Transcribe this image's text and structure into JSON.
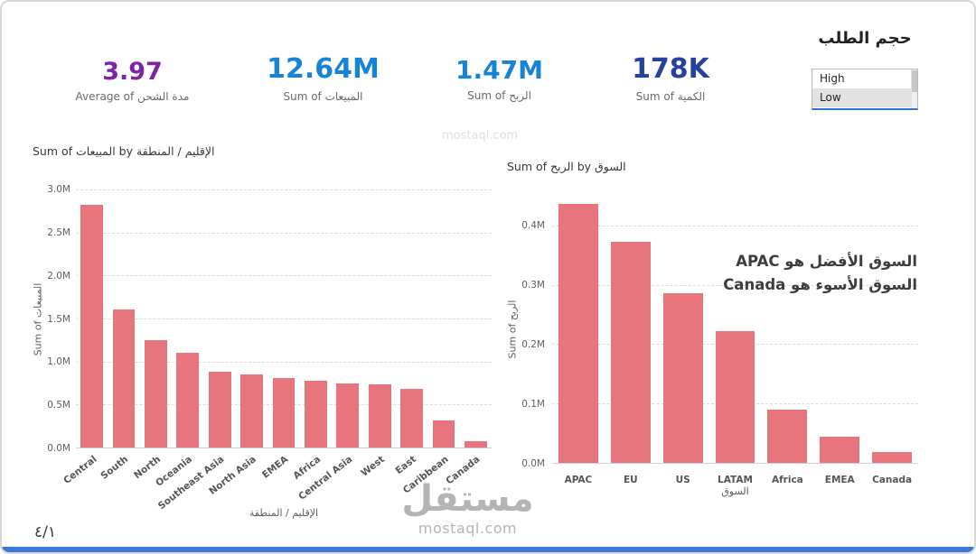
{
  "kpis": [
    {
      "value": "3.97",
      "label": "Average of مدة الشحن",
      "color": "#7c23a8"
    },
    {
      "value": "12.64M",
      "label": "Sum of المبيعات",
      "color": "#1583d6"
    },
    {
      "value": "1.47M",
      "label": "Sum of الربح",
      "color": "#1583d6"
    },
    {
      "value": "178K",
      "label": "Sum of الكمية",
      "color": "#24429e"
    }
  ],
  "slicer": {
    "title": "حجم الطلب",
    "options": [
      "High",
      "Low"
    ],
    "selected": "Low"
  },
  "chart_data": [
    {
      "type": "bar",
      "title": "Sum of المبيعات by الإقليم / المنطقة",
      "ylabel": "Sum of المبيعات",
      "xlabel": "الإقليم / المنطقة",
      "categories": [
        "Central",
        "South",
        "North",
        "Oceania",
        "Southeast Asia",
        "North Asia",
        "EMEA",
        "Africa",
        "Central Asia",
        "West",
        "East",
        "Caribbean",
        "Canada"
      ],
      "values": [
        2.82,
        1.6,
        1.25,
        1.1,
        0.88,
        0.85,
        0.81,
        0.78,
        0.75,
        0.73,
        0.68,
        0.32,
        0.07
      ],
      "unit": "M",
      "ylim": [
        0,
        3.0
      ],
      "yticks": [
        {
          "v": 0,
          "label": "0.0M"
        },
        {
          "v": 0.5,
          "label": "0.5M"
        },
        {
          "v": 1,
          "label": "1.0M"
        },
        {
          "v": 1.5,
          "label": "1.5M"
        },
        {
          "v": 2,
          "label": "2.0M"
        },
        {
          "v": 2.5,
          "label": "2.5M"
        },
        {
          "v": 3,
          "label": "3.0M"
        }
      ],
      "bar_color": "#e8747d",
      "rotated_labels": true,
      "grid": true,
      "legend": false
    },
    {
      "type": "bar",
      "title": "Sum of الربح by السوق",
      "ylabel": "Sum of الربح",
      "xlabel": "السوق",
      "categories": [
        "APAC",
        "EU",
        "US",
        "LATAM",
        "Africa",
        "EMEA",
        "Canada"
      ],
      "values": [
        0.436,
        0.373,
        0.286,
        0.222,
        0.089,
        0.044,
        0.018
      ],
      "unit": "M",
      "ylim": [
        0,
        0.45
      ],
      "yticks": [
        {
          "v": 0,
          "label": "0.0M"
        },
        {
          "v": 0.1,
          "label": "0.1M"
        },
        {
          "v": 0.2,
          "label": "0.2M"
        },
        {
          "v": 0.3,
          "label": "0.3M"
        },
        {
          "v": 0.4,
          "label": "0.4M"
        }
      ],
      "bar_color": "#e8747d",
      "rotated_labels": false,
      "grid": true,
      "legend": false,
      "annotation": [
        "السوق الأفضل هو APAC",
        "السوق الأسوء هو Canada"
      ]
    }
  ],
  "page_number": "٤/١",
  "watermark": {
    "logo": "مستقل",
    "site": "mostaql.com"
  },
  "faint_watermark": "mostaql.com"
}
